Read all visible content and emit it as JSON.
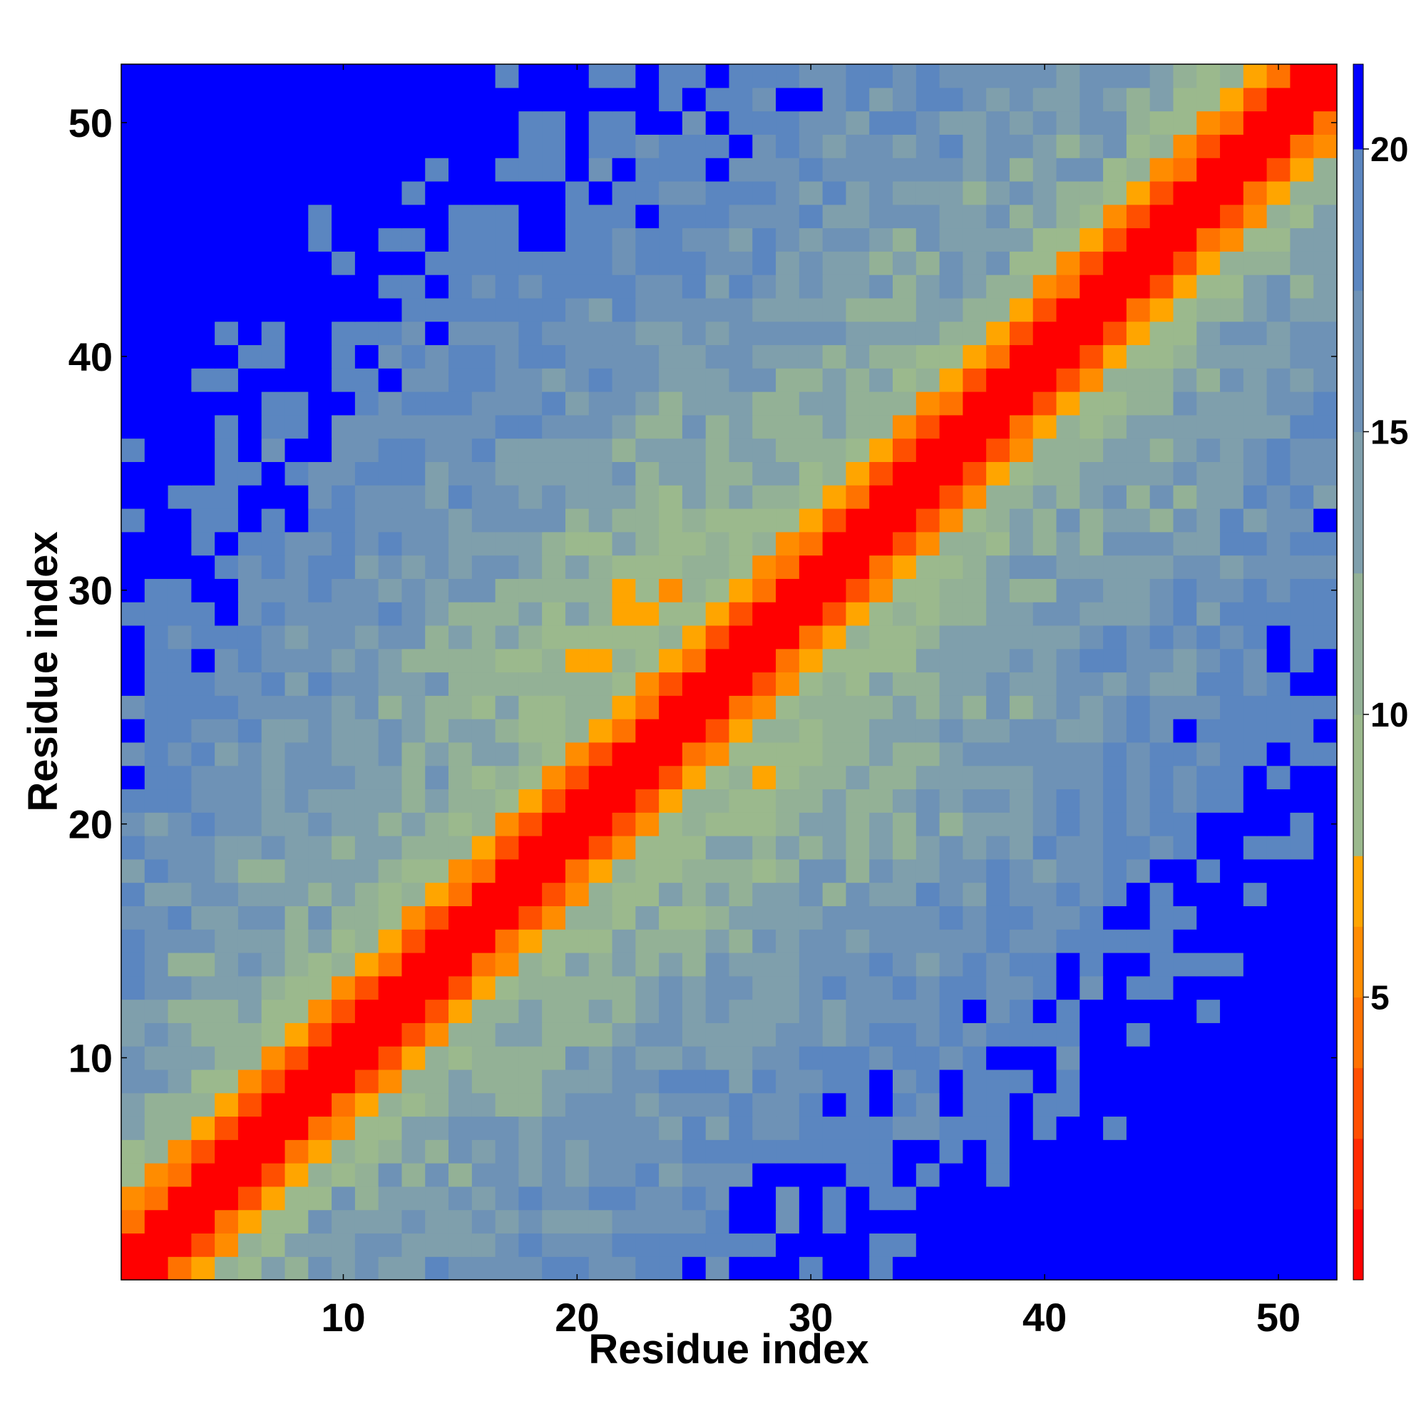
{
  "chart_data": {
    "type": "heatmap",
    "title": "",
    "xlabel": "Residue index",
    "ylabel": "Residue index",
    "x_range": [
      1,
      52
    ],
    "y_range": [
      1,
      52
    ],
    "x_ticks": [
      "10",
      "20",
      "30",
      "40",
      "50"
    ],
    "y_ticks": [
      "10",
      "20",
      "30",
      "40",
      "50"
    ],
    "x_tick_values": [
      10,
      20,
      30,
      40,
      50
    ],
    "y_tick_values": [
      10,
      20,
      30,
      40,
      50
    ],
    "value_range": [
      0,
      21.5
    ],
    "grid": false,
    "colorbar": {
      "position": "right",
      "ticks": [
        "5",
        "10",
        "15",
        "20"
      ],
      "tick_values": [
        5,
        10,
        15,
        20
      ],
      "bins": [
        {
          "min": 0,
          "max": 1.25,
          "color": "#ff0000"
        },
        {
          "min": 1.25,
          "max": 2.5,
          "color": "#ff2a00"
        },
        {
          "min": 2.5,
          "max": 3.75,
          "color": "#ff4f00"
        },
        {
          "min": 3.75,
          "max": 5,
          "color": "#ff7200"
        },
        {
          "min": 5,
          "max": 6.25,
          "color": "#ff8c00"
        },
        {
          "min": 6.25,
          "max": 7.5,
          "color": "#ffa500"
        },
        {
          "min": 7.5,
          "max": 10,
          "color": "#9bb98d"
        },
        {
          "min": 10,
          "max": 12.5,
          "color": "#93b196"
        },
        {
          "min": 12.5,
          "max": 15,
          "color": "#7f9fac"
        },
        {
          "min": 15,
          "max": 17.5,
          "color": "#6e92b6"
        },
        {
          "min": 17.5,
          "max": 20,
          "color": "#5b86c0"
        },
        {
          "min": 20,
          "max": 21.5,
          "color": "#0000ff"
        }
      ]
    },
    "generation": {
      "description": "residue-residue distance map (symmetric-ish, diagonal = 0)",
      "rows": 52,
      "cols": 52
    }
  }
}
